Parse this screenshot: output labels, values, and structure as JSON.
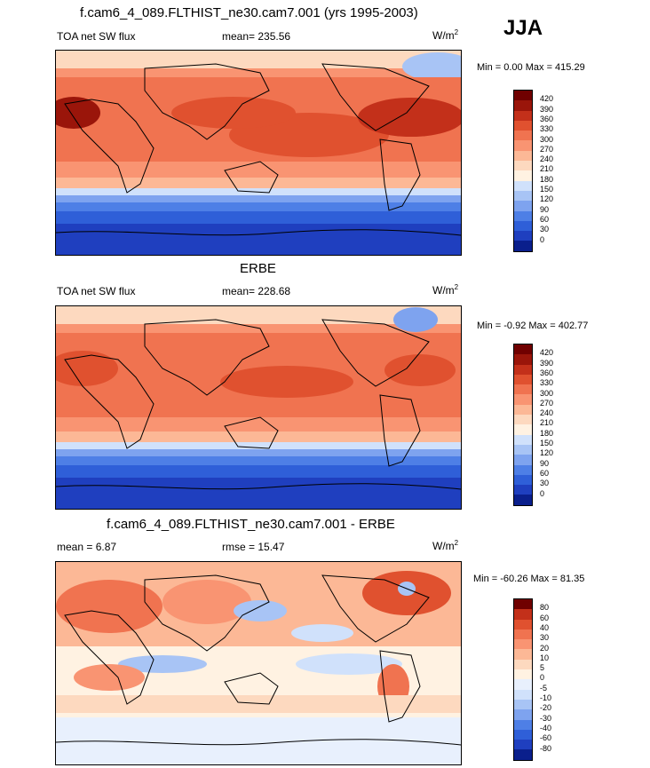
{
  "season": "JJA",
  "units": "W/m",
  "units_sup": "2",
  "colors": {
    "flux": [
      "#0a1f8c",
      "#1f3fbf",
      "#2f5fd8",
      "#4e7fe6",
      "#7ea3ef",
      "#a8c4f5",
      "#d0e1fb",
      "#fff2e2",
      "#fdd9bf",
      "#fcb896",
      "#f99472",
      "#f07350",
      "#e0512f",
      "#c3301a",
      "#9a150a",
      "#700000"
    ],
    "diff": [
      "#0a1f8c",
      "#1f3fbf",
      "#2f5fd8",
      "#4e7fe6",
      "#7ea3ef",
      "#a8c4f5",
      "#d0e1fb",
      "#e8f0fd",
      "#fff2e2",
      "#fdd9bf",
      "#fcb896",
      "#f99472",
      "#f07350",
      "#e0512f",
      "#c3301a",
      "#700000"
    ]
  },
  "panels": [
    {
      "title": "f.cam6_4_089.FLTHIST_ne30.cam7.001 (yrs 1995-2003)",
      "left_label": "TOA net SW flux",
      "center_label": "mean= 235.56",
      "minmax": "Min =   0.00 Max = 415.29",
      "ticks": [
        "420",
        "390",
        "360",
        "330",
        "300",
        "270",
        "240",
        "210",
        "180",
        "150",
        "120",
        "90",
        "60",
        "30",
        "0"
      ]
    },
    {
      "title": "ERBE",
      "left_label": "TOA net SW flux",
      "center_label": "mean= 228.68",
      "minmax": "Min =  -0.92 Max = 402.77",
      "ticks": [
        "420",
        "390",
        "360",
        "330",
        "300",
        "270",
        "240",
        "210",
        "180",
        "150",
        "120",
        "90",
        "60",
        "30",
        "0"
      ]
    },
    {
      "title": "f.cam6_4_089.FLTHIST_ne30.cam7.001 - ERBE",
      "left_label": "mean =   6.87",
      "center_label": "rmse =  15.47",
      "minmax": "Min = -60.26 Max =  81.35",
      "ticks": [
        "80",
        "60",
        "40",
        "30",
        "20",
        "10",
        "5",
        "0",
        "-5",
        "-10",
        "-20",
        "-30",
        "-40",
        "-60",
        "-80"
      ]
    }
  ],
  "chart_data": [
    {
      "type": "heatmap",
      "title": "f.cam6_4_089.FLTHIST_ne30.cam7.001 (yrs 1995-2003)",
      "variable": "TOA net SW flux",
      "season": "JJA",
      "units": "W/m2",
      "mean": 235.56,
      "min": 0.0,
      "max": 415.29,
      "colorbar_levels": [
        0,
        30,
        60,
        90,
        120,
        150,
        180,
        210,
        240,
        270,
        300,
        330,
        360,
        390,
        420
      ]
    },
    {
      "type": "heatmap",
      "title": "ERBE",
      "variable": "TOA net SW flux",
      "season": "JJA",
      "units": "W/m2",
      "mean": 228.68,
      "min": -0.92,
      "max": 402.77,
      "colorbar_levels": [
        0,
        30,
        60,
        90,
        120,
        150,
        180,
        210,
        240,
        270,
        300,
        330,
        360,
        390,
        420
      ]
    },
    {
      "type": "heatmap",
      "title": "f.cam6_4_089.FLTHIST_ne30.cam7.001 - ERBE",
      "season": "JJA",
      "units": "W/m2",
      "mean": 6.87,
      "rmse": 15.47,
      "min": -60.26,
      "max": 81.35,
      "colorbar_levels": [
        -80,
        -60,
        -40,
        -30,
        -20,
        -10,
        -5,
        0,
        5,
        10,
        20,
        30,
        40,
        60,
        80
      ]
    }
  ]
}
